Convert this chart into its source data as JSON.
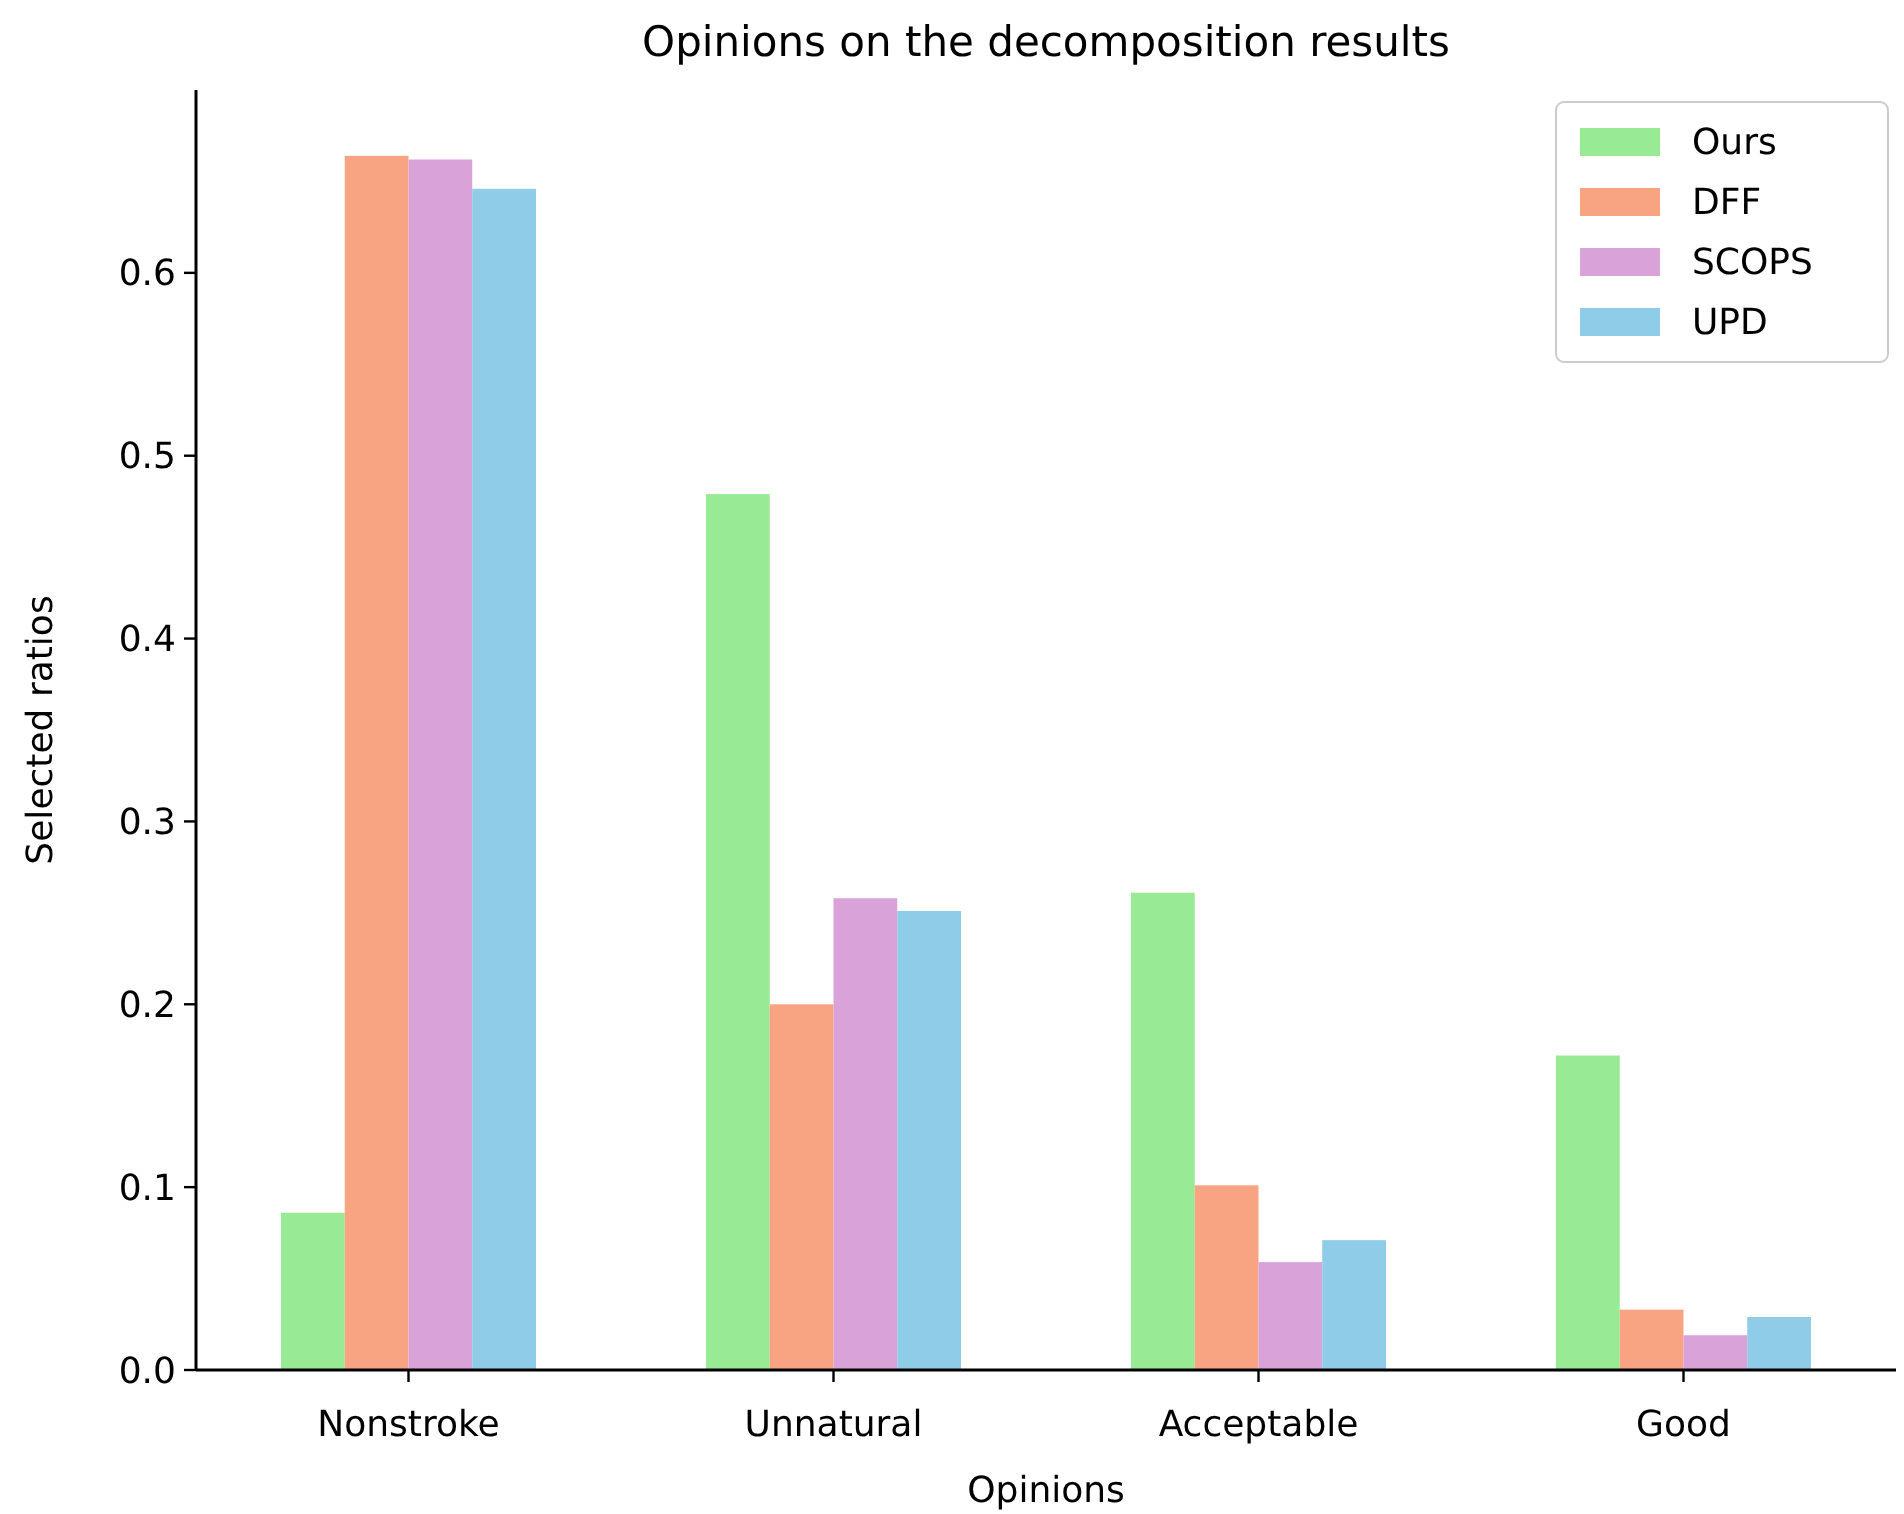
{
  "chart_data": {
    "type": "bar",
    "title": "Opinions on the decomposition results",
    "xlabel": "Opinions",
    "ylabel": "Selected ratios",
    "categories": [
      "Nonstroke",
      "Unnatural",
      "Acceptable",
      "Good"
    ],
    "series": [
      {
        "name": "Ours",
        "color": "#98eb94",
        "values": [
          0.086,
          0.479,
          0.261,
          0.172
        ]
      },
      {
        "name": "DFF",
        "color": "#f8a381",
        "values": [
          0.664,
          0.2,
          0.101,
          0.033
        ]
      },
      {
        "name": "SCOPS",
        "color": "#d9a3da",
        "values": [
          0.662,
          0.258,
          0.059,
          0.019
        ]
      },
      {
        "name": "UPD",
        "color": "#8ecce8",
        "values": [
          0.646,
          0.251,
          0.071,
          0.029
        ]
      }
    ],
    "ylim": [
      0,
      0.7
    ],
    "yticks": [
      {
        "value": 0,
        "label": "0.0"
      },
      {
        "value": 0.1,
        "label": "0.1"
      },
      {
        "value": 0.2,
        "label": "0.2"
      },
      {
        "value": 0.3,
        "label": "0.3"
      },
      {
        "value": 0.4,
        "label": "0.4"
      },
      {
        "value": 0.5,
        "label": "0.5"
      },
      {
        "value": 0.6,
        "label": "0.6"
      }
    ],
    "legend": "top right",
    "grid": false
  }
}
